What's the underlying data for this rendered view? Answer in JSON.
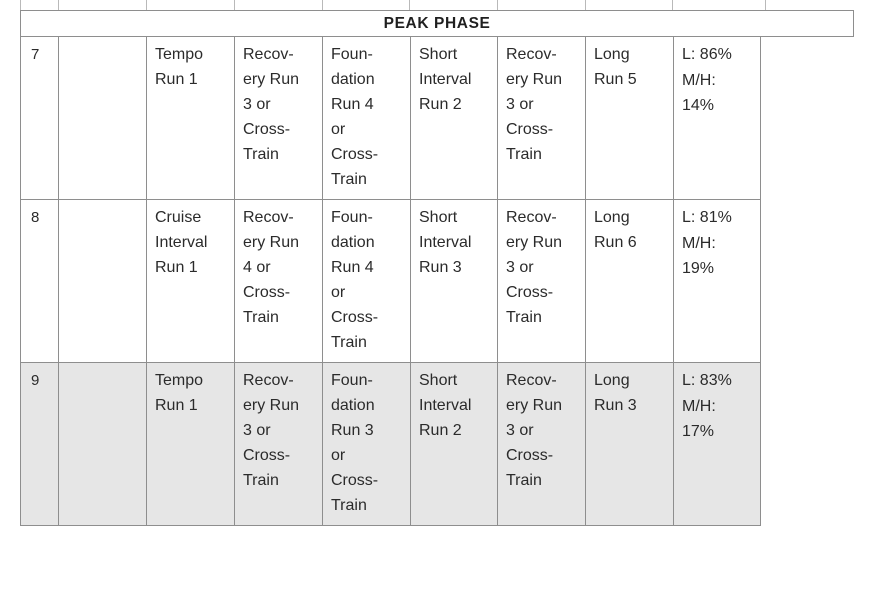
{
  "phase_title": "PEAK PHASE",
  "weeks": [
    {
      "week": "7",
      "shaded": false,
      "days": [
        [],
        [
          "Tempo",
          "Run 1"
        ],
        [
          "Recov-",
          "ery Run",
          "3 or",
          "Cross-",
          "Train"
        ],
        [
          "Foun-",
          "dation",
          "Run 4",
          "or",
          "Cross-",
          "Train"
        ],
        [
          "Short",
          "Interval",
          "Run 2"
        ],
        [
          "Recov-",
          "ery Run",
          "3 or",
          "Cross-",
          "Train"
        ],
        [
          "Long",
          "Run 5"
        ]
      ],
      "intensity": [
        "L: 86%",
        "M/H:",
        "14%"
      ]
    },
    {
      "week": "8",
      "shaded": false,
      "days": [
        [],
        [
          "Cruise",
          "Interval",
          "Run 1"
        ],
        [
          "Recov-",
          "ery Run",
          "4 or",
          "Cross-",
          "Train"
        ],
        [
          "Foun-",
          "dation",
          "Run 4",
          "or",
          "Cross-",
          "Train"
        ],
        [
          "Short",
          "Interval",
          "Run 3"
        ],
        [
          "Recov-",
          "ery Run",
          "3 or",
          "Cross-",
          "Train"
        ],
        [
          "Long",
          "Run 6"
        ]
      ],
      "intensity": [
        "L: 81%",
        "M/H:",
        "19%"
      ]
    },
    {
      "week": "9",
      "shaded": true,
      "days": [
        [],
        [
          "Tempo",
          "Run 1"
        ],
        [
          "Recov-",
          "ery Run",
          "3 or",
          "Cross-",
          "Train"
        ],
        [
          "Foun-",
          "dation",
          "Run 3",
          "or",
          "Cross-",
          "Train"
        ],
        [
          "Short",
          "Interval",
          "Run 2"
        ],
        [
          "Recov-",
          "ery Run",
          "3 or",
          "Cross-",
          "Train"
        ],
        [
          "Long",
          "Run 3"
        ]
      ],
      "intensity": [
        "L: 83%",
        "M/H:",
        "17%"
      ]
    }
  ]
}
